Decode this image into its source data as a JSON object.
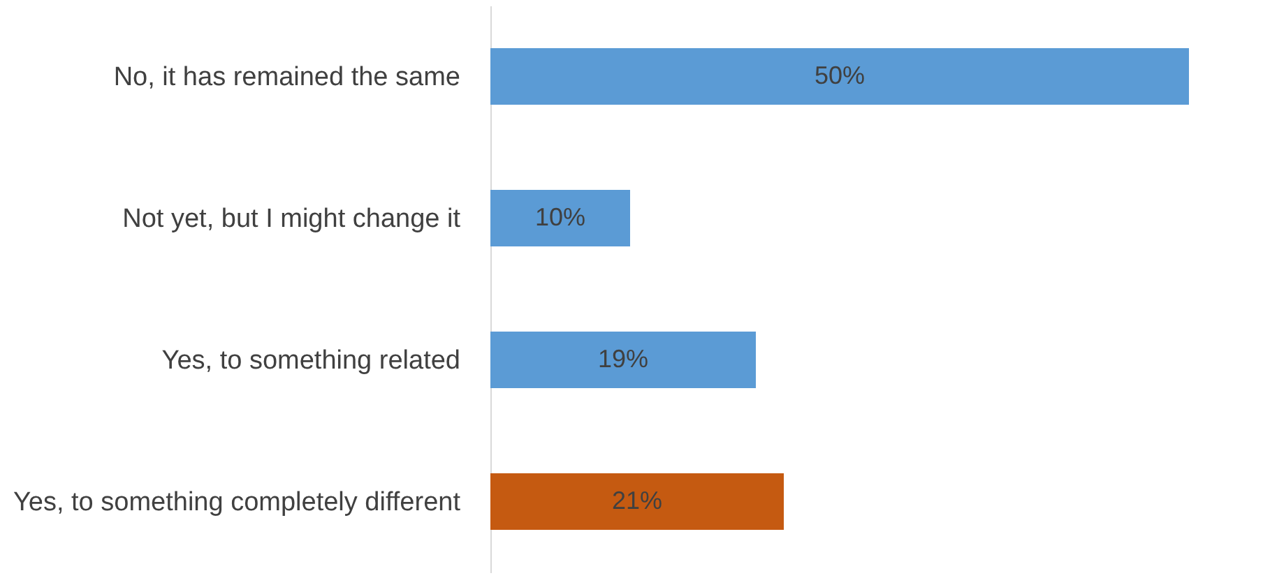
{
  "chart_data": {
    "type": "bar",
    "orientation": "horizontal",
    "categories": [
      "No, it has remained the same",
      "Not yet, but I might change it",
      "Yes, to something related",
      "Yes, to something completely different"
    ],
    "values": [
      50,
      10,
      19,
      21
    ],
    "colors": [
      "#5b9bd5",
      "#5b9bd5",
      "#5b9bd5",
      "#c55a11"
    ],
    "value_labels": [
      "50%",
      "10%",
      "19%",
      "21%"
    ],
    "xlim": [
      0,
      50
    ],
    "tick_labels": "y"
  }
}
